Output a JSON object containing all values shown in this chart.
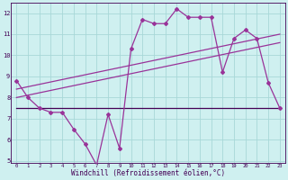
{
  "xlabel": "Windchill (Refroidissement éolien,°C)",
  "background_color": "#cff0f0",
  "grid_color": "#a8d8d8",
  "line_color": "#993399",
  "dark_line_color": "#440055",
  "hours": [
    0,
    1,
    2,
    3,
    4,
    5,
    6,
    7,
    8,
    9,
    10,
    11,
    12,
    13,
    14,
    15,
    16,
    17,
    18,
    19,
    20,
    21,
    22,
    23
  ],
  "windchill": [
    8.8,
    8.0,
    7.5,
    7.3,
    7.3,
    6.5,
    5.8,
    4.8,
    7.2,
    5.6,
    10.3,
    11.7,
    11.5,
    11.5,
    12.2,
    11.8,
    11.8,
    11.8,
    9.2,
    10.8,
    11.2,
    10.8,
    8.7,
    7.5
  ],
  "reg_line1": [
    8.0,
    10.6
  ],
  "reg_line2": [
    8.4,
    11.0
  ],
  "flat_line_y": 7.5,
  "ylim": [
    4.9,
    12.5
  ],
  "xlim": [
    -0.5,
    23.5
  ],
  "yticks": [
    5,
    6,
    7,
    8,
    9,
    10,
    11,
    12
  ],
  "xticks": [
    0,
    1,
    2,
    3,
    4,
    5,
    6,
    7,
    8,
    9,
    10,
    11,
    12,
    13,
    14,
    15,
    16,
    17,
    18,
    19,
    20,
    21,
    22,
    23
  ]
}
